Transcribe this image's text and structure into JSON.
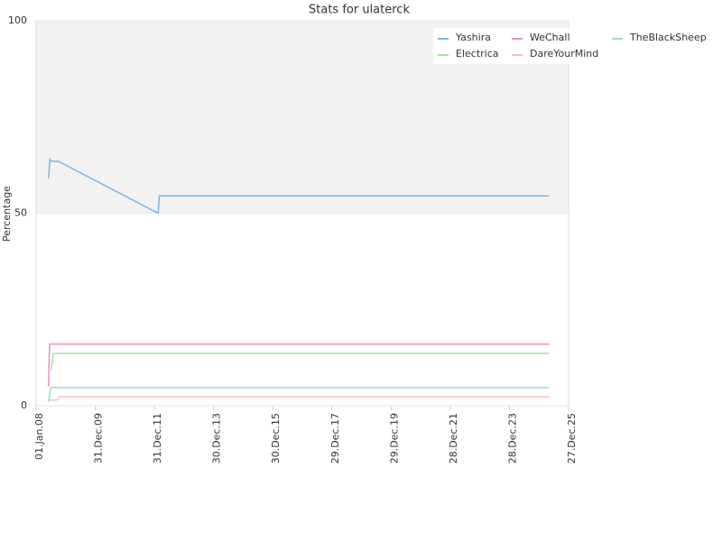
{
  "chart_data": {
    "type": "line",
    "title": "Stats for ulaterck",
    "ylabel": "Percentage",
    "xlim": [
      "2008-01-01",
      "2025-12-27"
    ],
    "xticks": [
      {
        "value": "2008-01-01",
        "label": "01.Jan.08"
      },
      {
        "value": "2009-12-31",
        "label": "31.Dec.09"
      },
      {
        "value": "2011-12-31",
        "label": "31.Dec.11"
      },
      {
        "value": "2013-12-30",
        "label": "30.Dec.13"
      },
      {
        "value": "2015-12-30",
        "label": "30.Dec.15"
      },
      {
        "value": "2017-12-29",
        "label": "29.Dec.17"
      },
      {
        "value": "2019-12-29",
        "label": "29.Dec.19"
      },
      {
        "value": "2021-12-28",
        "label": "28.Dec.21"
      },
      {
        "value": "2023-12-28",
        "label": "28.Dec.23"
      },
      {
        "value": "2025-12-27",
        "label": "27.Dec.25"
      }
    ],
    "ylim": [
      0,
      100
    ],
    "yticks": [
      0,
      50,
      100
    ],
    "grid": true,
    "band": {
      "from": 50,
      "to": 100,
      "color": "#f2f2f2"
    },
    "legend": "top-right",
    "series": [
      {
        "name": "Yashira",
        "color": "#7cb5ec",
        "x": [
          "2008-06-01",
          "2008-06-20",
          "2008-07-15",
          "2008-10-01",
          "2012-02-15",
          "2012-03-01",
          "2025-05-01"
        ],
        "values": [
          59,
          64,
          63.5,
          63.5,
          50,
          54.5,
          54.5
        ]
      },
      {
        "name": "WeChall",
        "color": "#f08cc8",
        "x": [
          "2008-06-01",
          "2008-06-15",
          "2025-05-01"
        ],
        "values": [
          5,
          16,
          16
        ]
      },
      {
        "name": "TheBlackSheep",
        "color": "#90ddd0",
        "x": [
          "2008-06-01",
          "2008-07-01",
          "2025-05-01"
        ],
        "values": [
          1,
          4.7,
          4.7
        ]
      },
      {
        "name": "Electrica",
        "color": "#a6e3a0",
        "x": [
          "2008-07-01",
          "2008-08-01",
          "2025-05-01"
        ],
        "values": [
          9,
          13.6,
          13.6
        ]
      },
      {
        "name": "DareYourMind",
        "color": "#f7c0c0",
        "x": [
          "2008-06-01",
          "2008-09-15",
          "2008-10-15",
          "2025-05-01"
        ],
        "values": [
          1.5,
          1.5,
          2.3,
          2.3
        ]
      }
    ]
  }
}
